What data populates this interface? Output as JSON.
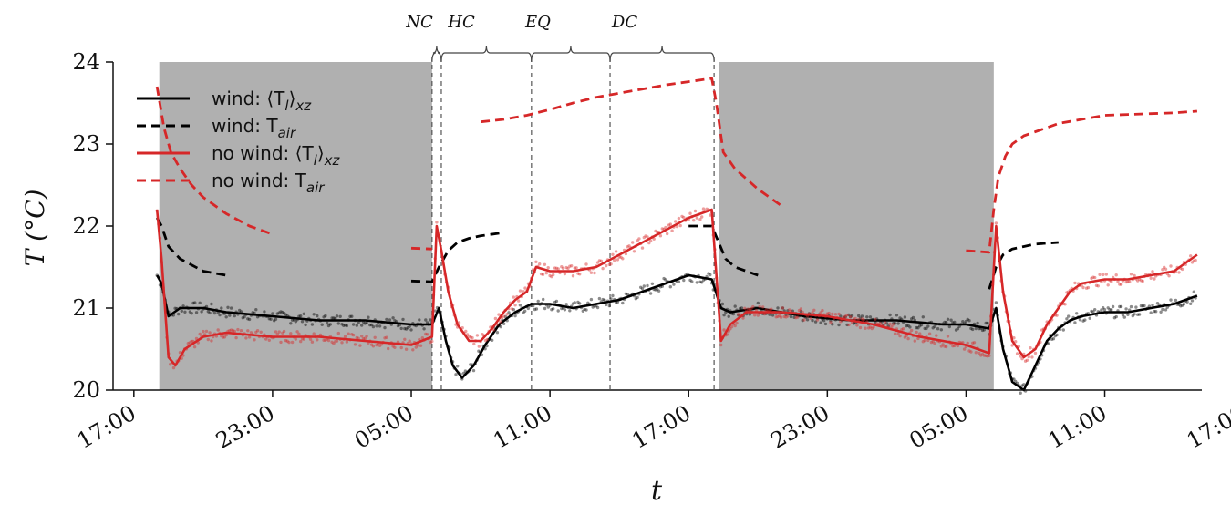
{
  "chart_data": {
    "type": "line",
    "xlabel": "t",
    "ylabel": "T (°C)",
    "x_unit": "hours since 17:00 of day 1",
    "xlim": [
      -0.9,
      46.2
    ],
    "ylim": [
      20,
      24
    ],
    "x_ticks": [
      {
        "x": 0,
        "label": "17:00"
      },
      {
        "x": 6,
        "label": "23:00"
      },
      {
        "x": 12,
        "label": "05:00"
      },
      {
        "x": 18,
        "label": "11:00"
      },
      {
        "x": 24,
        "label": "17:00"
      },
      {
        "x": 30,
        "label": "23:00"
      },
      {
        "x": 36,
        "label": "05:00"
      },
      {
        "x": 42,
        "label": "11:00"
      },
      {
        "x": 48,
        "label": "17:00"
      }
    ],
    "y_ticks": [
      {
        "y": 20,
        "label": "20"
      },
      {
        "y": 21,
        "label": "21"
      },
      {
        "y": 22,
        "label": "22"
      },
      {
        "y": 23,
        "label": "23"
      },
      {
        "y": 24,
        "label": "24"
      }
    ],
    "dark_periods": [
      [
        1.1,
        12.9
      ],
      [
        25.3,
        37.2
      ]
    ],
    "phase_boundaries": [
      12.9,
      13.3,
      17.2,
      20.6,
      25.1
    ],
    "phases": [
      {
        "label": "NC",
        "from": 12.9,
        "to": 13.3
      },
      {
        "label": "HC",
        "from": 13.3,
        "to": 17.2
      },
      {
        "label": "EQ",
        "from": 17.2,
        "to": 20.6
      },
      {
        "label": "DC",
        "from": 20.6,
        "to": 25.1
      }
    ],
    "legend": [
      {
        "label": "wind: ⟨T",
        "sub": "l",
        "tail": "⟩",
        "sub2": "xz",
        "color": "#000000",
        "style": "solid"
      },
      {
        "label": "wind:  T",
        "sub": "air",
        "tail": "",
        "sub2": "",
        "color": "#000000",
        "style": "dashed"
      },
      {
        "label": "no wind: ⟨T",
        "sub": "l",
        "tail": "⟩",
        "sub2": "xz",
        "color": "#d62728",
        "style": "solid"
      },
      {
        "label": "no wind:  T",
        "sub": "air",
        "tail": "",
        "sub2": "",
        "color": "#d62728",
        "style": "dashed"
      }
    ],
    "series": [
      {
        "name": "wind: ⟨Tl⟩xz",
        "color": "#000000",
        "style": "solid",
        "x": [
          1.0,
          1.2,
          1.5,
          2.0,
          3.0,
          4.0,
          6.0,
          8.0,
          10.0,
          12.0,
          12.9,
          13.2,
          13.5,
          13.8,
          14.2,
          14.7,
          15.2,
          15.8,
          16.5,
          17.2,
          18.0,
          19.0,
          20.0,
          21.0,
          22.0,
          23.0,
          24.0,
          25.0,
          25.4,
          25.8,
          27.0,
          29.0,
          31.0,
          33.0,
          35.0,
          36.0,
          37.0,
          37.3,
          37.6,
          38.0,
          38.5,
          39.0,
          39.5,
          40.0,
          40.5,
          41.0,
          42.0,
          43.0,
          44.0,
          45.0,
          46.0
        ],
        "y": [
          21.4,
          21.3,
          20.9,
          21.0,
          21.0,
          20.95,
          20.9,
          20.85,
          20.85,
          20.8,
          20.8,
          21.0,
          20.6,
          20.3,
          20.15,
          20.3,
          20.55,
          20.8,
          20.95,
          21.05,
          21.05,
          21.0,
          21.05,
          21.1,
          21.2,
          21.3,
          21.4,
          21.35,
          21.0,
          20.95,
          21.0,
          20.9,
          20.85,
          20.85,
          20.8,
          20.8,
          20.75,
          21.0,
          20.5,
          20.1,
          20.0,
          20.3,
          20.6,
          20.75,
          20.85,
          20.9,
          20.95,
          20.95,
          21.0,
          21.05,
          21.15
        ]
      },
      {
        "name": "wind: Tair",
        "color": "#000000",
        "style": "dashed",
        "x": [
          1.0,
          1.2,
          1.5,
          2.0,
          3.0,
          4.0,
          6.0,
          8.0,
          10.0,
          12.0,
          12.9,
          13.2,
          13.6,
          14.0,
          14.5,
          15.0,
          16.0,
          18.0,
          20.0,
          22.0,
          24.0,
          25.0,
          25.3,
          25.6,
          26.0,
          27.0,
          29.0,
          31.0,
          33.0,
          35.0,
          37.0,
          37.3,
          37.6,
          38.0,
          38.5,
          39.0,
          40.0,
          42.0,
          44.0,
          46.0
        ],
        "y": [
          22.1,
          22.0,
          21.75,
          21.6,
          21.45,
          21.4,
          21.38,
          21.35,
          21.33,
          21.33,
          21.32,
          21.5,
          21.7,
          21.8,
          21.85,
          21.88,
          21.92,
          21.95,
          21.98,
          22.0,
          22.0,
          22.0,
          21.8,
          21.6,
          21.5,
          21.4,
          21.32,
          21.3,
          21.28,
          21.26,
          21.23,
          21.5,
          21.65,
          21.72,
          21.75,
          21.78,
          21.8,
          21.83,
          21.85,
          21.85
        ]
      },
      {
        "name": "no wind: ⟨Tl⟩xz",
        "color": "#d62728",
        "style": "solid",
        "x": [
          1.0,
          1.2,
          1.5,
          1.8,
          2.2,
          3.0,
          4.0,
          6.0,
          8.0,
          10.0,
          12.0,
          12.9,
          13.1,
          13.3,
          13.6,
          14.0,
          14.5,
          15.0,
          15.5,
          16.0,
          16.5,
          17.0,
          17.4,
          18.0,
          19.0,
          20.0,
          21.0,
          22.0,
          23.0,
          24.0,
          25.0,
          25.4,
          25.8,
          26.5,
          28.0,
          30.0,
          32.0,
          34.0,
          36.0,
          37.0,
          37.3,
          37.6,
          38.0,
          38.5,
          39.0,
          39.5,
          40.0,
          40.5,
          41.0,
          42.0,
          43.0,
          44.0,
          45.0,
          46.0
        ],
        "y": [
          22.2,
          21.6,
          20.4,
          20.3,
          20.5,
          20.65,
          20.7,
          20.65,
          20.65,
          20.6,
          20.55,
          20.65,
          22.0,
          21.7,
          21.2,
          20.8,
          20.6,
          20.6,
          20.75,
          20.95,
          21.1,
          21.2,
          21.5,
          21.45,
          21.45,
          21.5,
          21.65,
          21.8,
          21.95,
          22.1,
          22.2,
          20.6,
          20.8,
          20.95,
          20.95,
          20.9,
          20.8,
          20.65,
          20.55,
          20.45,
          22.0,
          21.2,
          20.6,
          20.4,
          20.5,
          20.8,
          21.0,
          21.2,
          21.3,
          21.35,
          21.35,
          21.4,
          21.45,
          21.65
        ]
      },
      {
        "name": "no wind: Tair",
        "color": "#d62728",
        "style": "dashed",
        "x": [
          1.0,
          1.3,
          1.6,
          2.0,
          2.5,
          3.0,
          4.0,
          5.0,
          6.0,
          8.0,
          10.0,
          12.0,
          12.9,
          15.0,
          16.0,
          17.0,
          18.0,
          19.0,
          20.0,
          21.0,
          22.0,
          23.0,
          24.0,
          25.0,
          25.2,
          25.5,
          26.0,
          27.0,
          28.0,
          30.0,
          32.0,
          34.0,
          36.0,
          37.0,
          37.2,
          37.4,
          37.7,
          38.0,
          38.5,
          39.0,
          40.0,
          41.0,
          42.0,
          43.0,
          44.0,
          45.0,
          46.0
        ],
        "y": [
          23.7,
          23.2,
          22.9,
          22.7,
          22.5,
          22.35,
          22.15,
          22.0,
          21.9,
          21.82,
          21.77,
          21.73,
          21.72,
          23.27,
          23.3,
          23.35,
          23.42,
          23.5,
          23.57,
          23.62,
          23.67,
          23.72,
          23.76,
          23.8,
          23.5,
          22.9,
          22.7,
          22.45,
          22.25,
          22.0,
          21.85,
          21.75,
          21.7,
          21.68,
          22.2,
          22.6,
          22.85,
          23.0,
          23.1,
          23.15,
          23.25,
          23.3,
          23.35,
          23.36,
          23.37,
          23.38,
          23.4
        ]
      }
    ]
  }
}
